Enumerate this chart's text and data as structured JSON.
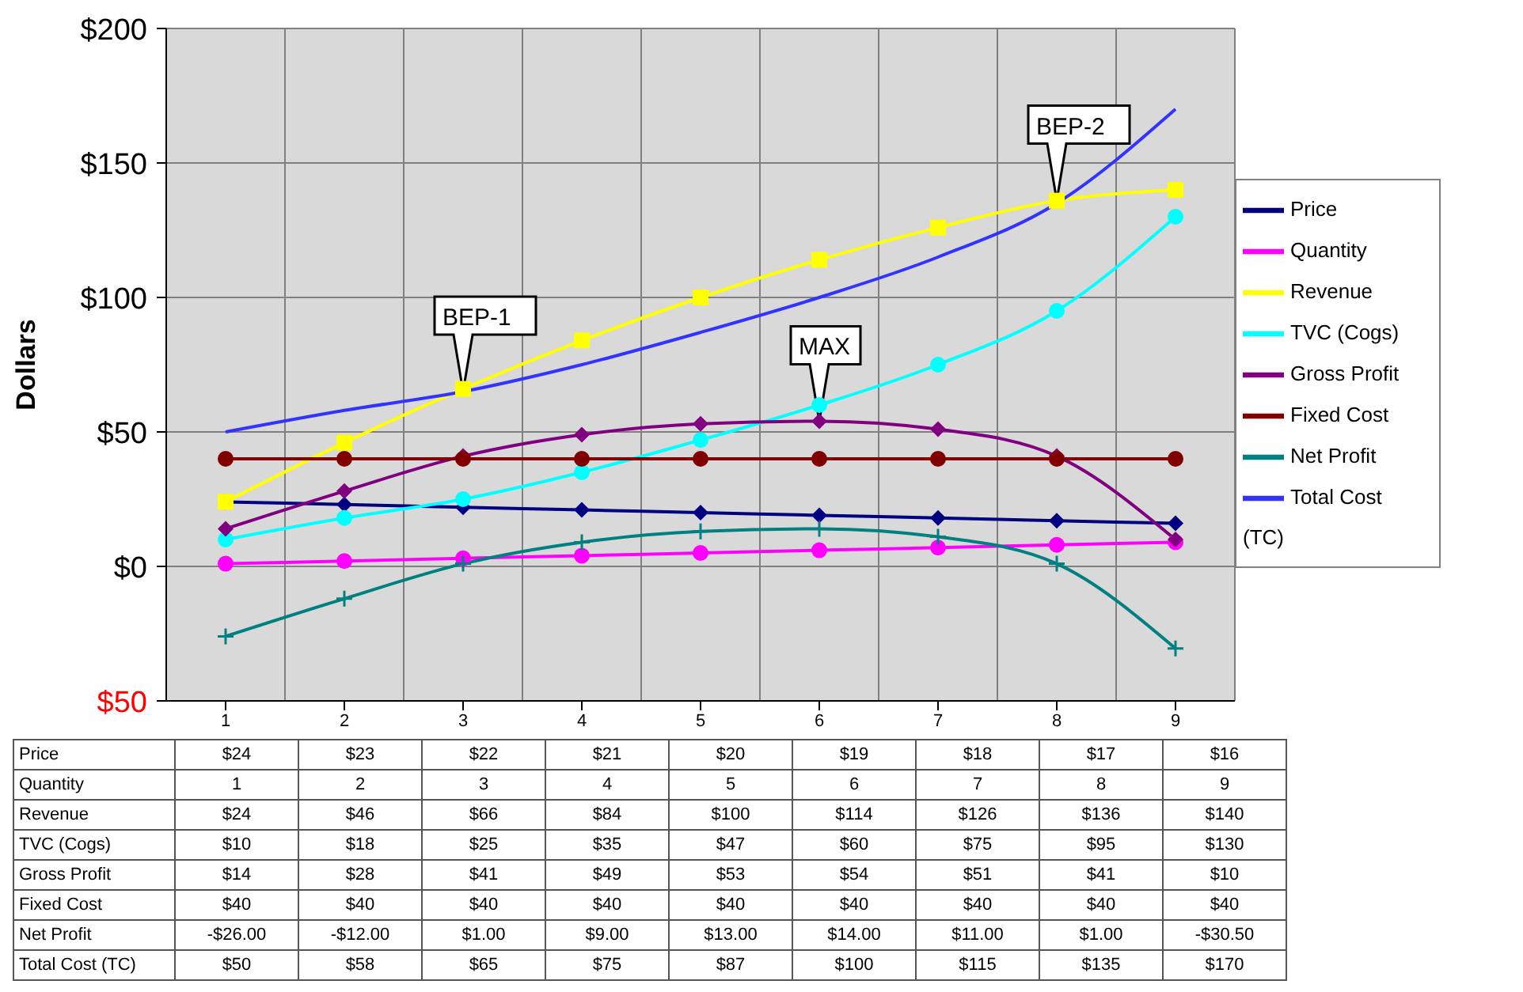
{
  "chart_data": {
    "type": "line",
    "ylabel": "Dollars",
    "categories": [
      "1",
      "2",
      "3",
      "4",
      "5",
      "6",
      "7",
      "8",
      "9"
    ],
    "ylim": [
      -50,
      200
    ],
    "yticks": [
      {
        "value": -50,
        "label": "$50"
      },
      {
        "value": 0,
        "label": "$0"
      },
      {
        "value": 50,
        "label": "$50"
      },
      {
        "value": 100,
        "label": "$100"
      },
      {
        "value": 150,
        "label": "$150"
      },
      {
        "value": 200,
        "label": "$200"
      }
    ],
    "grid": true,
    "legend": "right",
    "series": [
      {
        "name": "Price",
        "color": "#000080",
        "marker": "diamond",
        "values": [
          24,
          23,
          22,
          21,
          20,
          19,
          18,
          17,
          16
        ],
        "value_labels": [
          "$24",
          "$23",
          "$22",
          "$21",
          "$20",
          "$19",
          "$18",
          "$17",
          "$16"
        ]
      },
      {
        "name": "Quantity",
        "color": "#ff00ff",
        "marker": "circle",
        "values": [
          1,
          2,
          3,
          4,
          5,
          6,
          7,
          8,
          9
        ],
        "value_labels": [
          "1",
          "2",
          "3",
          "4",
          "5",
          "6",
          "7",
          "8",
          "9"
        ]
      },
      {
        "name": "Revenue",
        "color": "#ffff00",
        "marker": "square",
        "values": [
          24,
          46,
          66,
          84,
          100,
          114,
          126,
          136,
          140
        ],
        "value_labels": [
          "$24",
          "$46",
          "$66",
          "$84",
          "$100",
          "$114",
          "$126",
          "$136",
          "$140"
        ]
      },
      {
        "name": "TVC (Cogs)",
        "color": "#00ffff",
        "marker": "circle",
        "values": [
          10,
          18,
          25,
          35,
          47,
          60,
          75,
          95,
          130
        ],
        "value_labels": [
          "$10",
          "$18",
          "$25",
          "$35",
          "$47",
          "$60",
          "$75",
          "$95",
          "$130"
        ]
      },
      {
        "name": "Gross Profit",
        "color": "#800080",
        "marker": "diamond",
        "values": [
          14,
          28,
          41,
          49,
          53,
          54,
          51,
          41,
          10
        ],
        "value_labels": [
          "$14",
          "$28",
          "$41",
          "$49",
          "$53",
          "$54",
          "$51",
          "$41",
          "$10"
        ]
      },
      {
        "name": "Fixed Cost",
        "color": "#800000",
        "marker": "circle",
        "values": [
          40,
          40,
          40,
          40,
          40,
          40,
          40,
          40,
          40
        ],
        "value_labels": [
          "$40",
          "$40",
          "$40",
          "$40",
          "$40",
          "$40",
          "$40",
          "$40",
          "$40"
        ]
      },
      {
        "name": "Net Profit",
        "color": "#008080",
        "marker": "cross",
        "values": [
          -26,
          -12,
          1,
          9,
          13,
          14,
          11,
          1,
          -30.5
        ],
        "value_labels": [
          "-$26.00",
          "-$12.00",
          "$1.00",
          "$9.00",
          "$13.00",
          "$14.00",
          "$11.00",
          "$1.00",
          "-$30.50"
        ]
      },
      {
        "name": "Total Cost (TC)",
        "color": "#3333ff",
        "marker": "none",
        "values": [
          50,
          58,
          65,
          75,
          87,
          100,
          115,
          135,
          170
        ],
        "value_labels": [
          "$50",
          "$58",
          "$65",
          "$75",
          "$87",
          "$100",
          "$115",
          "$135",
          "$170"
        ]
      }
    ],
    "annotations": [
      {
        "text": "BEP-1",
        "x": "3",
        "y": 65
      },
      {
        "text": "MAX",
        "x": "6",
        "y": 54
      },
      {
        "text": "BEP-2",
        "x": "8",
        "y": 136
      }
    ]
  }
}
